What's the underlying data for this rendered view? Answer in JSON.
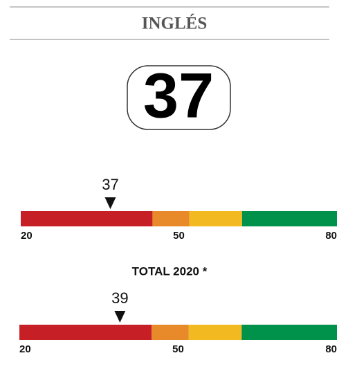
{
  "title": "INGLÉS",
  "score": 37,
  "gauges": [
    {
      "marker": 37,
      "min": 20,
      "max": 80,
      "ticks": [
        20,
        50,
        80
      ],
      "bands": [
        {
          "to": 45,
          "color": "#c62026"
        },
        {
          "to": 52,
          "color": "#e8892a"
        },
        {
          "to": 62,
          "color": "#f3b920"
        },
        {
          "to": 80,
          "color": "#00924a"
        }
      ]
    },
    {
      "label": "TOTAL 2020 *",
      "marker": 39,
      "min": 20,
      "max": 80,
      "ticks": [
        20,
        50,
        80
      ],
      "bands": [
        {
          "to": 45,
          "color": "#c62026"
        },
        {
          "to": 52,
          "color": "#e8892a"
        },
        {
          "to": 62,
          "color": "#f3b920"
        },
        {
          "to": 80,
          "color": "#00924a"
        }
      ]
    }
  ]
}
